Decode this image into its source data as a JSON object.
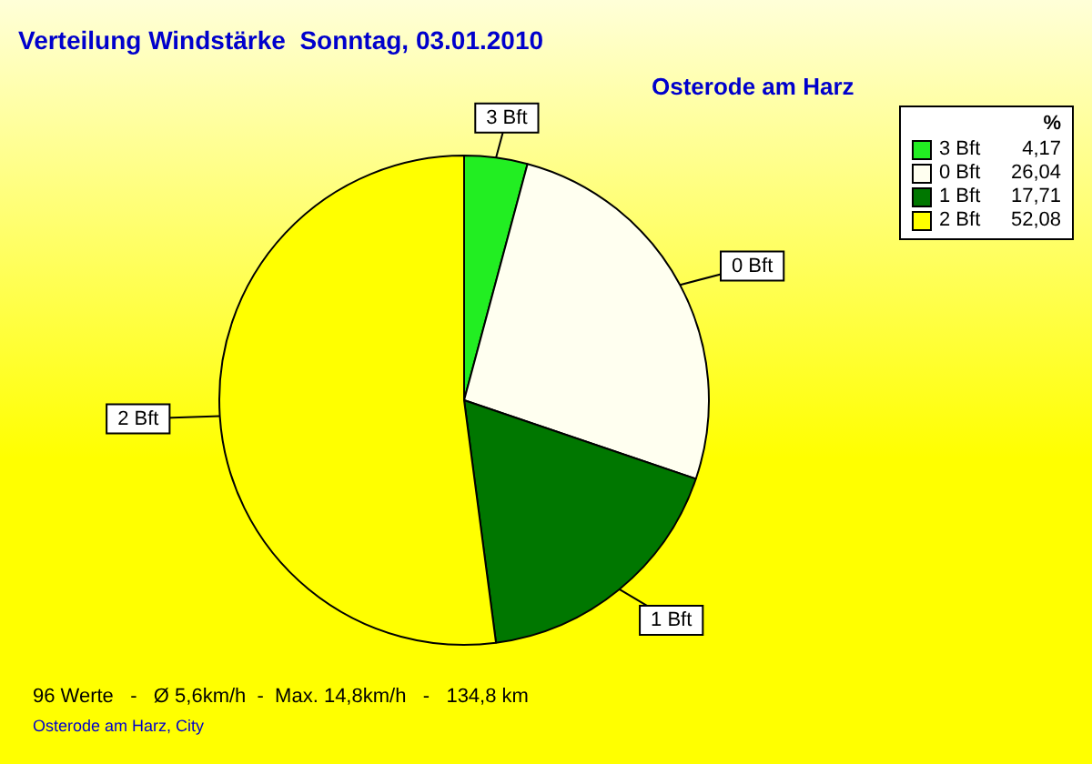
{
  "chart_data": {
    "type": "pie",
    "title": "Verteilung Windstärke  Sonntag, 03.01.2010",
    "subtitle": "Osterode am Harz",
    "legend_title": "%",
    "legend": "top right",
    "categories": [
      "3 Bft",
      "0 Bft",
      "1 Bft",
      "2 Bft"
    ],
    "values": [
      4.17,
      26.04,
      17.71,
      52.08
    ],
    "value_labels": [
      "4,17",
      "26,04",
      "17,71",
      "52,08"
    ],
    "colors": [
      "#22ee22",
      "#fffff0",
      "#007700",
      "#ffff00"
    ],
    "annotations": [
      "96 Werte   -   Ø 5,6km/h  -  Max. 14,8km/h   -   134,8 km",
      "Osterode am Harz, City"
    ]
  }
}
